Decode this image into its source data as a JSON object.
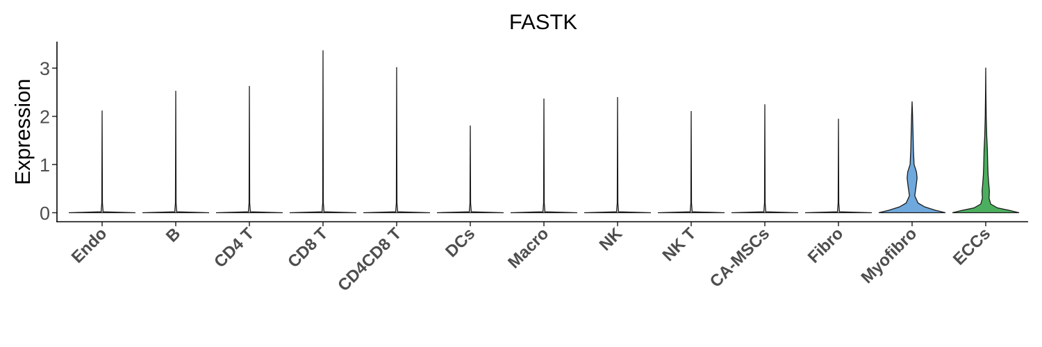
{
  "chart_data": {
    "type": "violin",
    "title": "FASTK",
    "xlabel": "",
    "ylabel": "Expression",
    "ylim": [
      -0.18,
      3.55
    ],
    "yticks": [
      0,
      1,
      2,
      3
    ],
    "grid": false,
    "legend": "none",
    "categories": [
      "Endo",
      "B",
      "CD4 T",
      "CD8 T",
      "CD4CD8 T",
      "DCs",
      "Macro",
      "NK",
      "NK T",
      "CA-MSCs",
      "Fibro",
      "Myofibro",
      "ECCs"
    ],
    "max_values": [
      2.12,
      2.53,
      2.63,
      3.37,
      3.02,
      1.81,
      2.37,
      2.4,
      2.11,
      2.25,
      1.95,
      2.31,
      3.01
    ],
    "colors": {
      "Myofibro": "#6fa8dc",
      "ECCs": "#4caf5f",
      "default": "#d9d9d9"
    },
    "violins": [
      {
        "category": "Endo",
        "profile": [
          [
            0,
            1
          ],
          [
            0.02,
            0.03
          ],
          [
            0.2,
            0.01
          ],
          [
            2.12,
            0
          ]
        ]
      },
      {
        "category": "B",
        "profile": [
          [
            0,
            1
          ],
          [
            0.02,
            0.03
          ],
          [
            0.2,
            0.01
          ],
          [
            2.53,
            0
          ]
        ]
      },
      {
        "category": "CD4 T",
        "profile": [
          [
            0,
            1
          ],
          [
            0.02,
            0.03
          ],
          [
            0.2,
            0.01
          ],
          [
            2.63,
            0
          ]
        ]
      },
      {
        "category": "CD8 T",
        "profile": [
          [
            0,
            1
          ],
          [
            0.02,
            0.03
          ],
          [
            0.2,
            0.01
          ],
          [
            3.37,
            0
          ]
        ]
      },
      {
        "category": "CD4CD8 T",
        "profile": [
          [
            0,
            1
          ],
          [
            0.02,
            0.03
          ],
          [
            0.2,
            0.01
          ],
          [
            3.02,
            0
          ]
        ]
      },
      {
        "category": "DCs",
        "profile": [
          [
            0,
            1
          ],
          [
            0.02,
            0.03
          ],
          [
            0.2,
            0.01
          ],
          [
            1.81,
            0
          ]
        ]
      },
      {
        "category": "Macro",
        "profile": [
          [
            0,
            1
          ],
          [
            0.02,
            0.03
          ],
          [
            0.2,
            0.01
          ],
          [
            2.37,
            0
          ]
        ]
      },
      {
        "category": "NK",
        "profile": [
          [
            0,
            1
          ],
          [
            0.02,
            0.03
          ],
          [
            0.2,
            0.01
          ],
          [
            2.4,
            0
          ]
        ]
      },
      {
        "category": "NK T",
        "profile": [
          [
            0,
            1
          ],
          [
            0.02,
            0.03
          ],
          [
            0.2,
            0.01
          ],
          [
            2.11,
            0
          ]
        ]
      },
      {
        "category": "CA-MSCs",
        "profile": [
          [
            0,
            1
          ],
          [
            0.02,
            0.03
          ],
          [
            0.2,
            0.01
          ],
          [
            2.25,
            0
          ]
        ]
      },
      {
        "category": "Fibro",
        "profile": [
          [
            0,
            1
          ],
          [
            0.02,
            0.03
          ],
          [
            0.2,
            0.01
          ],
          [
            1.95,
            0
          ]
        ]
      },
      {
        "category": "Myofibro",
        "profile": [
          [
            0,
            1
          ],
          [
            0.05,
            0.7
          ],
          [
            0.12,
            0.38
          ],
          [
            0.2,
            0.18
          ],
          [
            0.35,
            0.08
          ],
          [
            0.55,
            0.12
          ],
          [
            0.72,
            0.15
          ],
          [
            0.85,
            0.13
          ],
          [
            1.0,
            0.06
          ],
          [
            1.3,
            0.04
          ],
          [
            1.6,
            0.03
          ],
          [
            2.0,
            0.015
          ],
          [
            2.31,
            0
          ]
        ]
      },
      {
        "category": "ECCs",
        "profile": [
          [
            0,
            1
          ],
          [
            0.05,
            0.7
          ],
          [
            0.1,
            0.35
          ],
          [
            0.18,
            0.15
          ],
          [
            0.3,
            0.1
          ],
          [
            0.45,
            0.11
          ],
          [
            0.6,
            0.09
          ],
          [
            0.8,
            0.07
          ],
          [
            1.0,
            0.06
          ],
          [
            1.3,
            0.05
          ],
          [
            1.6,
            0.03
          ],
          [
            2.0,
            0.015
          ],
          [
            2.5,
            0.006
          ],
          [
            3.01,
            0
          ]
        ]
      }
    ]
  }
}
